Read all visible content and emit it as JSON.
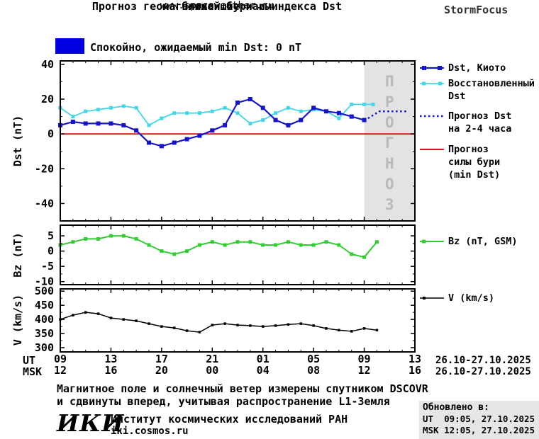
{
  "header": {
    "title_line1": "Прогноз геомагнитной бури и индекса Dst",
    "title_line2": "на ближайшие часы",
    "site_url": "www.spaceweather.ru",
    "brand": "StormFocus"
  },
  "status_banner": {
    "label": "Спокойно, ожидаемый min Dst: 0 nT",
    "swatch_color": "#0000e0"
  },
  "legend": {
    "dst_kyoto": "Dst, Киото",
    "restored_line1": "Восстановленный",
    "restored_line2": "Dst",
    "forecast_line1": "Прогноз Dst",
    "forecast_line2": "на 2-4 часа",
    "storm_line1": "Прогноз",
    "storm_line2": "силы бури",
    "storm_line3": "(min Dst)",
    "bz": "Bz (nT, GSM)",
    "v": "V (km/s)"
  },
  "chart_data": [
    {
      "type": "line",
      "title": "Прогноз геомагнитной бури и индекса Dst на ближайшие часы",
      "ylabel": "Dst (nT)",
      "ylim": [
        -50,
        42
      ],
      "yticks": [
        40,
        20,
        0,
        -20,
        -40
      ],
      "xlim": [
        0,
        28
      ],
      "grid": false,
      "forecast_region": {
        "x_start": 24,
        "x_end": 28,
        "fill": "#e3e3e3",
        "label": "ПРОГНОЗ",
        "label_color": "#b9b9b9"
      },
      "series": [
        {
          "name": "Прогноз силы бури (min Dst)",
          "color": "#dd1111",
          "width": 1.8,
          "x": [
            0,
            28
          ],
          "values": [
            0,
            0
          ]
        },
        {
          "name": "Восстановленный Dst",
          "color": "#40d8e8",
          "width": 1.8,
          "marker": "square",
          "marker_size": 5,
          "x": [
            0,
            1,
            2,
            3,
            4,
            5,
            6,
            7,
            8,
            9,
            10,
            11,
            12,
            13,
            14,
            15,
            16,
            17,
            18,
            19,
            20,
            21,
            22,
            23,
            24,
            24.7
          ],
          "values": [
            15,
            10,
            13,
            14,
            15,
            16,
            15,
            5,
            9,
            12,
            12,
            12,
            13,
            15,
            12,
            6,
            8,
            12,
            15,
            13,
            14,
            13,
            9,
            17,
            17,
            17
          ]
        },
        {
          "name": "Dst, Киото",
          "color": "#1414cc",
          "width": 2.2,
          "marker": "square",
          "marker_size": 6,
          "x": [
            0,
            1,
            2,
            3,
            4,
            5,
            6,
            7,
            8,
            9,
            10,
            11,
            12,
            13,
            14,
            15,
            16,
            17,
            18,
            19,
            20,
            21,
            22,
            23,
            24
          ],
          "values": [
            5,
            7,
            6,
            6,
            6,
            5,
            2,
            -5,
            -7,
            -5,
            -3,
            -1,
            2,
            5,
            18,
            20,
            15,
            8,
            5,
            8,
            15,
            13,
            12,
            10,
            8
          ]
        },
        {
          "name": "Прогноз Dst на 2-4 часа",
          "color": "#1414cc",
          "width": 2.5,
          "dash": "dotted",
          "x": [
            24.3,
            25.2,
            27.4
          ],
          "values": [
            9,
            13,
            13
          ]
        }
      ]
    },
    {
      "type": "line",
      "ylabel": "Bz (nT)",
      "ylim": [
        -11,
        8.5
      ],
      "yticks": [
        5,
        0,
        -5,
        -10
      ],
      "xlim": [
        0,
        28
      ],
      "grid": false,
      "series": [
        {
          "name": "Bz (nT, GSM)",
          "color": "#33cc33",
          "width": 2,
          "marker": "square",
          "marker_size": 5,
          "x": [
            0,
            1,
            2,
            3,
            4,
            5,
            6,
            7,
            8,
            9,
            10,
            11,
            12,
            13,
            14,
            15,
            16,
            17,
            18,
            19,
            20,
            21,
            22,
            23,
            24,
            25
          ],
          "values": [
            2,
            3,
            4,
            4,
            5,
            5,
            4,
            2,
            0,
            -1,
            0,
            2,
            3,
            2,
            3,
            3,
            2,
            2,
            3,
            2,
            2,
            3,
            2,
            -1,
            -2,
            3
          ]
        }
      ]
    },
    {
      "type": "line",
      "ylabel": "V (km/s)",
      "ylim": [
        285,
        508
      ],
      "yticks": [
        500,
        450,
        400,
        350,
        300
      ],
      "xlim": [
        0,
        28
      ],
      "grid": false,
      "series": [
        {
          "name": "V (km/s)",
          "color": "#000000",
          "width": 1.5,
          "marker": "square",
          "marker_size": 3.5,
          "x": [
            0,
            1,
            2,
            3,
            4,
            5,
            6,
            7,
            8,
            9,
            10,
            11,
            12,
            13,
            14,
            15,
            16,
            17,
            18,
            19,
            20,
            21,
            22,
            23,
            24,
            25
          ],
          "values": [
            400,
            415,
            425,
            420,
            405,
            400,
            395,
            385,
            375,
            370,
            360,
            355,
            380,
            385,
            380,
            378,
            375,
            378,
            382,
            385,
            378,
            368,
            362,
            358,
            368,
            362
          ]
        }
      ]
    }
  ],
  "xaxis": {
    "tick_hours": [
      0,
      4,
      8,
      12,
      16,
      20,
      24,
      28
    ],
    "ut_labels": [
      "09",
      "13",
      "17",
      "21",
      "01",
      "05",
      "09",
      "13"
    ],
    "msk_labels": [
      "12",
      "16",
      "20",
      "00",
      "04",
      "08",
      "12",
      "16"
    ],
    "row_ut": "UT",
    "row_msk": "MSK",
    "date_range_ut": "26.10-27.10.2025",
    "date_range_msk": "26.10-27.10.2025"
  },
  "footer": {
    "note_line1": "Магнитное поле и солнечный ветер измерены спутником DSCOVR",
    "note_line2": "и сдвинуты вперед, учитывая распространение L1-Земля",
    "logo": "ИКИ",
    "institute": "Институт космических исследований РАН",
    "institute_url": "iki.cosmos.ru",
    "updated_label": "Обновлено в:",
    "updated_ut": "UT  09:05, 27.10.2025",
    "updated_msk": "MSK 12:05, 27.10.2025"
  }
}
